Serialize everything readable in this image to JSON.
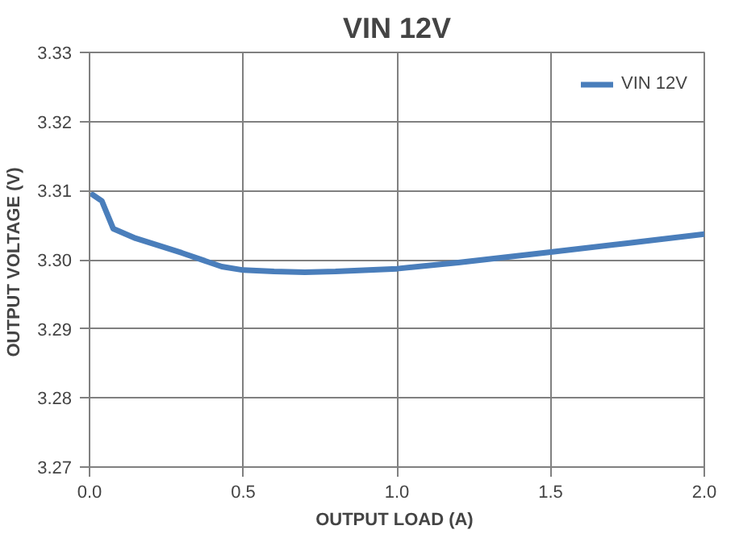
{
  "chart_data": {
    "type": "line",
    "title": "VIN 12V",
    "xlabel": "OUTPUT  LOAD (A)",
    "ylabel": "OUTPUT  VOLTAGE (V)",
    "xlim": [
      0,
      2
    ],
    "xticks": [
      {
        "value": 0,
        "label": "0.0"
      },
      0.5,
      {
        "value": 1,
        "label": "1.0"
      },
      1.5,
      {
        "value": 2,
        "label": "2.0"
      }
    ],
    "ylim": [
      3.27,
      3.33
    ],
    "yticks": [
      3.27,
      3.28,
      3.29,
      {
        "value": 3.3,
        "label": "3.30"
      },
      3.31,
      3.32,
      3.33
    ],
    "grid": true,
    "legend": "top right",
    "marker": "none",
    "line_style": "solid",
    "series": [
      {
        "name": "VIN 12V",
        "color": "#4a7ebb",
        "x": [
          0.01,
          0.04,
          0.077,
          0.15,
          0.3,
          0.43,
          0.5,
          0.6,
          0.7,
          0.8,
          1.0,
          1.2,
          1.5,
          1.75,
          2.0
        ],
        "values": [
          3.3094,
          3.3085,
          3.3045,
          3.3031,
          3.301,
          3.299,
          3.2985,
          3.2983,
          3.2982,
          3.2983,
          3.2987,
          3.2996,
          3.3011,
          3.3024,
          3.3037
        ]
      }
    ]
  }
}
